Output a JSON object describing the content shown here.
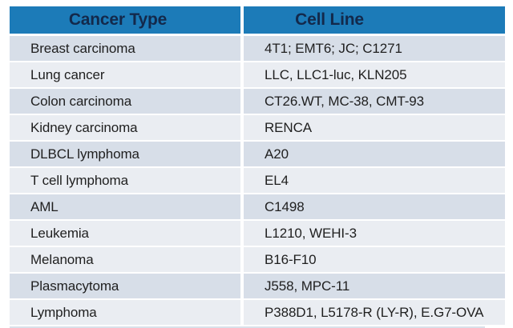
{
  "chart_data": {
    "type": "table",
    "columns": [
      "Cancer Type",
      "Cell Line"
    ],
    "rows": [
      [
        "Breast carcinoma",
        "4T1; EMT6; JC; C1271"
      ],
      [
        "Lung cancer",
        "LLC, LLC1-luc, KLN205"
      ],
      [
        "Colon carcinoma",
        "CT26.WT, MC-38, CMT-93"
      ],
      [
        "Kidney carcinoma",
        "RENCA"
      ],
      [
        "DLBCL lymphoma",
        "A20"
      ],
      [
        "T cell lymphoma",
        "EL4"
      ],
      [
        "AML",
        "C1498"
      ],
      [
        "Leukemia",
        "L1210, WEHI-3"
      ],
      [
        "Melanoma",
        "B16-F10"
      ],
      [
        "Plasmacytoma",
        "J558, MPC-11"
      ],
      [
        "Lymphoma",
        "P388D1, L5178-R (LY-R), E.G7-OVA"
      ]
    ]
  },
  "table": {
    "columns": [
      {
        "label": "Cancer Type"
      },
      {
        "label": "Cell Line"
      }
    ],
    "rows": [
      {
        "type": "Breast carcinoma",
        "cell_line": "4T1; EMT6; JC; C1271",
        "shade": "dark"
      },
      {
        "type": "Lung cancer",
        "cell_line": "LLC, LLC1-luc, KLN205",
        "shade": "light"
      },
      {
        "type": "Colon carcinoma",
        "cell_line": "CT26.WT, MC-38, CMT-93",
        "shade": "dark"
      },
      {
        "type": "Kidney carcinoma",
        "cell_line": "RENCA",
        "shade": "light"
      },
      {
        "type": "DLBCL lymphoma",
        "cell_line": "A20",
        "shade": "dark"
      },
      {
        "type": "T cell lymphoma",
        "cell_line": "EL4",
        "shade": "light"
      },
      {
        "type": "AML",
        "cell_line": "C1498",
        "shade": "dark"
      },
      {
        "type": "Leukemia",
        "cell_line": "L1210, WEHI-3",
        "shade": "light"
      },
      {
        "type": "Melanoma",
        "cell_line": "B16-F10",
        "shade": "light"
      },
      {
        "type": "Plasmacytoma",
        "cell_line": "J558, MPC-11",
        "shade": "dark"
      },
      {
        "type": "Lymphoma",
        "cell_line": "P388D1, L5178-R (LY-R), E.G7-OVA",
        "shade": "light"
      }
    ],
    "colors": {
      "header_bg": "#1C7BB8",
      "header_text": "#13294B",
      "row_dark": "#D7DEE8",
      "row_light": "#EAEDF2",
      "row_text": "#1F1F1F",
      "divider_white": "#FFFFFF",
      "bottom_edge": "#D9E1EA"
    }
  }
}
